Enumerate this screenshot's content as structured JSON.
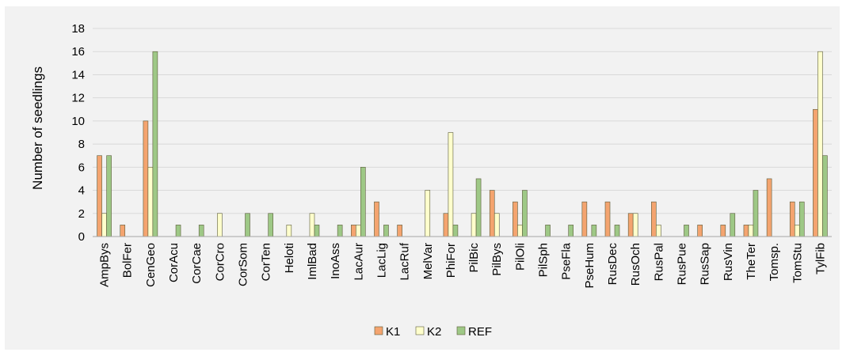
{
  "chart_data": {
    "type": "bar",
    "title": "",
    "xlabel": "",
    "ylabel": "Number of seedlings",
    "ylim": [
      0,
      18
    ],
    "yticks": [
      0,
      2,
      4,
      6,
      8,
      10,
      12,
      14,
      16,
      18
    ],
    "grid": true,
    "legend_position": "bottom",
    "categories": [
      "AmpBys",
      "BolFer",
      "CenGeo",
      "CorAcu",
      "CorCae",
      "CorCro",
      "CorSom",
      "CorTen",
      "Heloti",
      "ImlBad",
      "InoAss",
      "LacAur",
      "LacLig",
      "LacRuf",
      "MelVar",
      "PhiFor",
      "PilBic",
      "PilBys",
      "PilOli",
      "PilSph",
      "PseFla",
      "PseHum",
      "RusDec",
      "RusOch",
      "RusPal",
      "RusPue",
      "RusSap",
      "RusVin",
      "TheTer",
      "Tomsp.",
      "TomStu",
      "TylFib"
    ],
    "series": [
      {
        "name": "K1",
        "color": "#f4a46f",
        "values": [
          7,
          1,
          10,
          0,
          0,
          0,
          0,
          0,
          0,
          0,
          0,
          1,
          3,
          1,
          0,
          2,
          0,
          4,
          3,
          0,
          0,
          3,
          3,
          2,
          3,
          0,
          1,
          1,
          1,
          5,
          3,
          11
        ]
      },
      {
        "name": "K2",
        "color": "#ffffcc",
        "values": [
          2,
          0,
          6,
          0,
          0,
          2,
          0,
          0,
          1,
          2,
          0,
          1,
          0,
          0,
          4,
          9,
          2,
          2,
          1,
          0,
          0,
          0,
          0,
          2,
          1,
          0,
          0,
          0,
          1,
          0,
          1,
          16
        ]
      },
      {
        "name": "REF",
        "color": "#9ec886",
        "values": [
          7,
          0,
          16,
          1,
          1,
          0,
          2,
          2,
          0,
          1,
          1,
          6,
          1,
          0,
          0,
          1,
          5,
          0,
          4,
          1,
          1,
          1,
          1,
          0,
          0,
          1,
          0,
          2,
          4,
          0,
          3,
          7
        ]
      }
    ]
  }
}
